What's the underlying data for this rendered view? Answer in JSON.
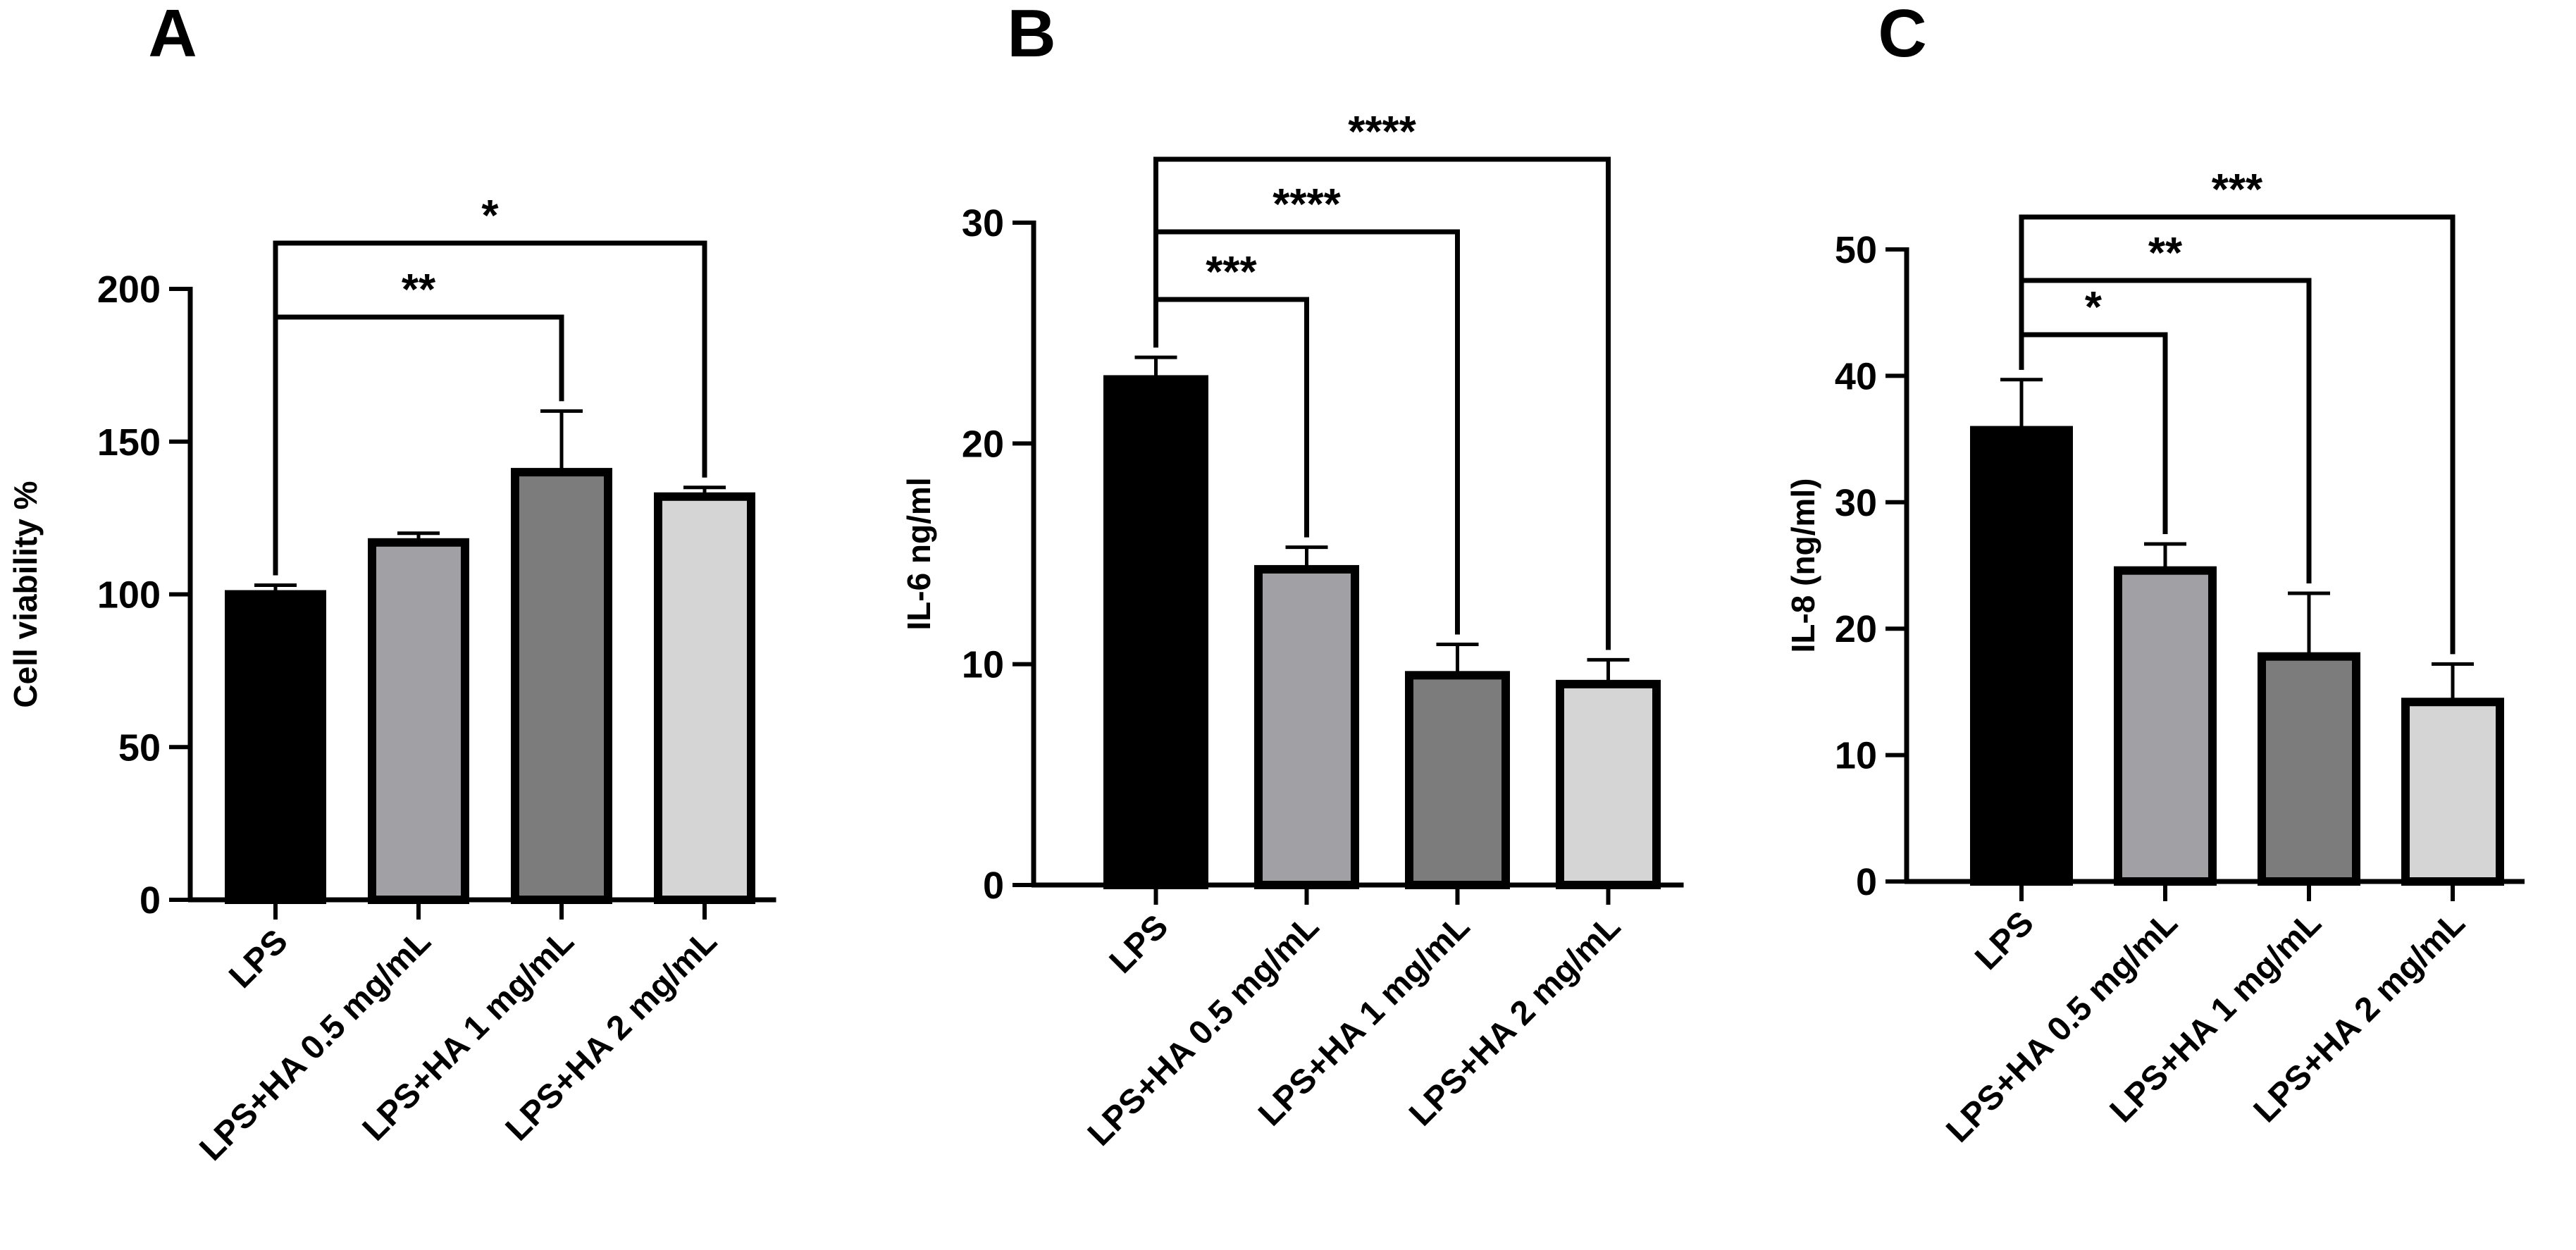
{
  "chart_data": [
    {
      "panel_label": "A",
      "type": "bar",
      "title": "",
      "xlabel": "",
      "ylabel": "Cell viability %",
      "ylim": [
        0,
        200
      ],
      "yticks": [
        0,
        50,
        100,
        150,
        200
      ],
      "categories": [
        "LPS",
        "LPS+HA 0.5 mg/mL",
        "LPS+HA 1 mg/mL",
        "LPS+HA 2 mg/mL"
      ],
      "values": [
        100,
        117,
        140,
        132
      ],
      "errors": [
        3,
        3,
        20,
        3
      ],
      "bar_colors": [
        "#000000",
        "#a0a0a5",
        "#7c7c7c",
        "#d5d5d5"
      ],
      "grid": false,
      "significance": [
        {
          "from": "LPS",
          "to": "LPS+HA 1 mg/mL",
          "label": "**"
        },
        {
          "from": "LPS",
          "to": "LPS+HA 2 mg/mL",
          "label": "*"
        }
      ]
    },
    {
      "panel_label": "B",
      "type": "bar",
      "title": "",
      "xlabel": "",
      "ylabel": "IL-6 ng/ml",
      "ylim": [
        0,
        30
      ],
      "yticks": [
        0,
        10,
        20,
        30
      ],
      "categories": [
        "LPS",
        "LPS+HA 0.5 mg/mL",
        "LPS+HA 1 mg/mL",
        "LPS+HA 2 mg/mL"
      ],
      "values": [
        22.9,
        14.3,
        9.5,
        9.1
      ],
      "errors": [
        1.0,
        1.0,
        1.4,
        1.1
      ],
      "bar_colors": [
        "#000000",
        "#a0a0a5",
        "#7c7c7c",
        "#d5d5d5"
      ],
      "grid": false,
      "significance": [
        {
          "from": "LPS",
          "to": "LPS+HA 0.5 mg/mL",
          "label": "***"
        },
        {
          "from": "LPS",
          "to": "LPS+HA 1 mg/mL",
          "label": "****"
        },
        {
          "from": "LPS",
          "to": "LPS+HA 2 mg/mL",
          "label": "****"
        }
      ]
    },
    {
      "panel_label": "C",
      "type": "bar",
      "title": "",
      "xlabel": "",
      "ylabel": "IL-8 (ng/ml)",
      "ylim": [
        0,
        50
      ],
      "yticks": [
        0,
        10,
        20,
        30,
        40,
        50
      ],
      "categories": [
        "LPS",
        "LPS+HA 0.5 mg/mL",
        "LPS+HA 1 mg/mL",
        "LPS+HA 2 mg/mL"
      ],
      "values": [
        35.7,
        24.6,
        17.8,
        14.2
      ],
      "errors": [
        4.0,
        2.1,
        5.0,
        3.0
      ],
      "bar_colors": [
        "#000000",
        "#a0a0a5",
        "#7c7c7c",
        "#d5d5d5"
      ],
      "grid": false,
      "significance": [
        {
          "from": "LPS",
          "to": "LPS+HA 0.5 mg/mL",
          "label": "*"
        },
        {
          "from": "LPS",
          "to": "LPS+HA 1 mg/mL",
          "label": "**"
        },
        {
          "from": "LPS",
          "to": "LPS+HA 2 mg/mL",
          "label": "***"
        }
      ]
    }
  ]
}
